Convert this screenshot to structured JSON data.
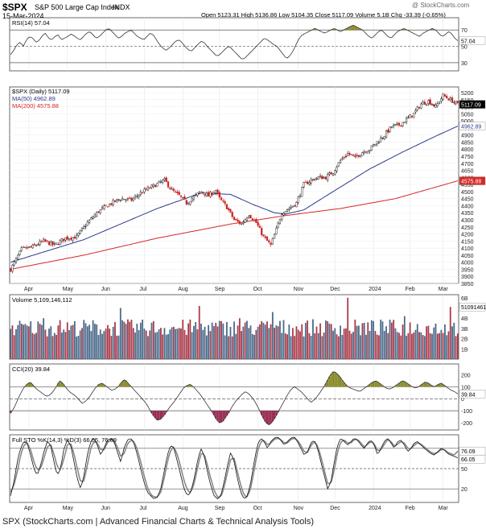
{
  "header": {
    "symbol": "$SPX",
    "name": "S&P 500 Large Cap Index",
    "exchange": "INDX",
    "date": "15-Mar-2024",
    "quote": "Open 5123.31  High 5136.86  Low 5104.35  Close 5117.09  Volume 5.1B  Chg -33.39 (-0.65%)",
    "watermark": "@ StockCharts.com"
  },
  "caption": "SPX (StockCharts.com | Advanced Financial Charts & Technical Analysis Tools)",
  "chart_data": [
    {
      "type": "line",
      "panel": "rsi",
      "legend": "RSI(14) 57.04",
      "current_value": "57.04",
      "ylim": [
        20,
        85
      ],
      "ticks": [
        "70",
        "50",
        "30"
      ],
      "reference_lines": [
        70,
        50,
        30
      ],
      "values": [
        40,
        45,
        52,
        55,
        50,
        58,
        62,
        60,
        55,
        57,
        63,
        66,
        60,
        58,
        62,
        64,
        58,
        60,
        62,
        65,
        63,
        60,
        58,
        62,
        66,
        68,
        64,
        60,
        62,
        66,
        70,
        72,
        68,
        64,
        60,
        62,
        66,
        68,
        70,
        66,
        62,
        60,
        58,
        62,
        66,
        64,
        58,
        52,
        48,
        45,
        48,
        52,
        56,
        58,
        55,
        50,
        46,
        44,
        48,
        52,
        56,
        55,
        50,
        46,
        42,
        38,
        40,
        44,
        48,
        50,
        46,
        42,
        38,
        34,
        36,
        40,
        44,
        48,
        52,
        56,
        60,
        58,
        55,
        52,
        50,
        45,
        40,
        35,
        38,
        44,
        52,
        60,
        64,
        66,
        68,
        70,
        72,
        70,
        68,
        66,
        68,
        70,
        72,
        70,
        68,
        70,
        72,
        74,
        76,
        74,
        72,
        70,
        66,
        62,
        60,
        64,
        68,
        70,
        66,
        62,
        60,
        64,
        68,
        70,
        72,
        70,
        68,
        66,
        64,
        62,
        66,
        68,
        70,
        72,
        70,
        66,
        62,
        64,
        68,
        66,
        60,
        57
      ]
    },
    {
      "type": "candlestick",
      "panel": "price",
      "legend": {
        "title": "$SPX (Daily) 5117.09",
        "series": [
          "MA(50) 4962.89",
          "MA(200) 4575.88"
        ],
        "colors": [
          "#2b3a8c",
          "#d62828"
        ]
      },
      "x_labels": [
        "Apr",
        "May",
        "Jun",
        "Jul",
        "Aug",
        "Sep",
        "Oct",
        "Nov",
        "Dec",
        "2024",
        "Feb",
        "Mar"
      ],
      "ylim": [
        3850,
        5240
      ],
      "y_ticks": [
        "5200",
        "5150",
        "5100",
        "5050",
        "5000",
        "4950",
        "4900",
        "4850",
        "4800",
        "4750",
        "4700",
        "4650",
        "4600",
        "4550",
        "4500",
        "4450",
        "4400",
        "4350",
        "4300",
        "4250",
        "4200",
        "4150",
        "4100",
        "4050",
        "4000",
        "3950",
        "3900",
        "3850"
      ],
      "last_labels": {
        "close": "5117.09",
        "ma50": "4962.89",
        "ma200": "4575.88"
      },
      "close_anchors": [
        [
          0,
          3950
        ],
        [
          6,
          4090
        ],
        [
          12,
          4110
        ],
        [
          18,
          4150
        ],
        [
          24,
          4120
        ],
        [
          30,
          4170
        ],
        [
          36,
          4180
        ],
        [
          42,
          4280
        ],
        [
          48,
          4360
        ],
        [
          54,
          4410
        ],
        [
          60,
          4450
        ],
        [
          66,
          4440
        ],
        [
          72,
          4500
        ],
        [
          78,
          4540
        ],
        [
          84,
          4580
        ],
        [
          88,
          4510
        ],
        [
          92,
          4470
        ],
        [
          96,
          4420
        ],
        [
          100,
          4460
        ],
        [
          104,
          4500
        ],
        [
          108,
          4470
        ],
        [
          112,
          4510
        ],
        [
          114,
          4450
        ],
        [
          118,
          4390
        ],
        [
          122,
          4300
        ],
        [
          126,
          4270
        ],
        [
          130,
          4340
        ],
        [
          134,
          4280
        ],
        [
          138,
          4180
        ],
        [
          142,
          4120
        ],
        [
          145,
          4230
        ],
        [
          148,
          4350
        ],
        [
          152,
          4380
        ],
        [
          156,
          4420
        ],
        [
          160,
          4550
        ],
        [
          164,
          4580
        ],
        [
          168,
          4600
        ],
        [
          172,
          4600
        ],
        [
          176,
          4640
        ],
        [
          180,
          4720
        ],
        [
          184,
          4770
        ],
        [
          188,
          4740
        ],
        [
          192,
          4780
        ],
        [
          196,
          4800
        ],
        [
          200,
          4850
        ],
        [
          204,
          4900
        ],
        [
          208,
          4960
        ],
        [
          212,
          4970
        ],
        [
          216,
          5010
        ],
        [
          220,
          5050
        ],
        [
          224,
          5120
        ],
        [
          228,
          5140
        ],
        [
          232,
          5100
        ],
        [
          236,
          5180
        ],
        [
          240,
          5150
        ],
        [
          244,
          5117
        ]
      ],
      "ma50_anchors": [
        [
          0,
          4000
        ],
        [
          40,
          4160
        ],
        [
          80,
          4380
        ],
        [
          104,
          4490
        ],
        [
          120,
          4480
        ],
        [
          132,
          4410
        ],
        [
          144,
          4350
        ],
        [
          150,
          4340
        ],
        [
          160,
          4370
        ],
        [
          176,
          4500
        ],
        [
          196,
          4660
        ],
        [
          214,
          4780
        ],
        [
          230,
          4880
        ],
        [
          244,
          4963
        ]
      ],
      "ma200_anchors": [
        [
          0,
          3950
        ],
        [
          40,
          4050
        ],
        [
          80,
          4170
        ],
        [
          120,
          4270
        ],
        [
          150,
          4330
        ],
        [
          180,
          4380
        ],
        [
          210,
          4450
        ],
        [
          244,
          4576
        ]
      ]
    },
    {
      "type": "bar",
      "panel": "volume",
      "legend": "Volume 5,109,146,112",
      "last_label": "5109146112",
      "ylim": [
        0,
        6.3
      ],
      "y_ticks": [
        "6B",
        "5B",
        "4B",
        "3B",
        "2B",
        "1B"
      ],
      "spike_indexes": [
        18,
        60,
        103,
        125,
        143,
        184,
        215,
        240
      ],
      "spike_values": [
        4.0,
        5.0,
        5.2,
        4.0,
        4.6,
        6.0,
        4.2,
        5.1
      ]
    },
    {
      "type": "line",
      "panel": "cci",
      "legend": "CCI(20) 39.84",
      "current_value": "39.84",
      "ylim": [
        -260,
        290
      ],
      "y_ticks": [
        "200",
        "100",
        "0",
        "-100",
        "-200"
      ],
      "reference_lines": [
        100,
        0,
        -100
      ],
      "values": [
        -120,
        -80,
        -20,
        40,
        90,
        120,
        140,
        110,
        80,
        60,
        40,
        20,
        30,
        60,
        100,
        150,
        130,
        90,
        60,
        40,
        20,
        -10,
        -40,
        -20,
        10,
        50,
        90,
        120,
        130,
        110,
        90,
        70,
        80,
        100,
        140,
        160,
        130,
        100,
        70,
        40,
        10,
        -20,
        -60,
        -110,
        -150,
        -180,
        -170,
        -140,
        -100,
        -60,
        -30,
        10,
        50,
        90,
        110,
        120,
        100,
        70,
        40,
        0,
        -40,
        -80,
        -120,
        -170,
        -200,
        -190,
        -150,
        -110,
        -60,
        -20,
        10,
        40,
        60,
        40,
        10,
        -30,
        -80,
        -140,
        -190,
        -220,
        -200,
        -160,
        -110,
        -60,
        -10,
        40,
        80,
        100,
        80,
        60,
        30,
        0,
        -30,
        -10,
        20,
        60,
        100,
        150,
        200,
        230,
        210,
        180,
        140,
        110,
        90,
        80,
        70,
        60,
        80,
        100,
        120,
        140,
        150,
        130,
        110,
        90,
        80,
        90,
        110,
        130,
        150,
        140,
        120,
        100,
        90,
        100,
        120,
        140,
        130,
        110,
        100,
        120,
        130,
        110,
        90,
        70,
        60,
        40
      ]
    },
    {
      "type": "line",
      "panel": "stochastic",
      "legend": "Full STO %K(14,3) %D(3) 66.05, 76.09",
      "current_values": [
        "76.09",
        "66.05"
      ],
      "ylim": [
        0,
        100
      ],
      "y_ticks": [
        "80",
        "50",
        "20"
      ],
      "reference_lines": [
        80,
        50,
        20
      ],
      "x_labels": [
        "Apr",
        "May",
        "Jun",
        "Jul",
        "Aug",
        "Sep",
        "Oct",
        "Nov",
        "Dec",
        "2024",
        "Feb",
        "Mar"
      ],
      "k_values": [
        10,
        30,
        60,
        80,
        90,
        88,
        70,
        50,
        40,
        55,
        75,
        90,
        85,
        60,
        40,
        50,
        80,
        92,
        85,
        60,
        35,
        20,
        40,
        70,
        90,
        95,
        85,
        70,
        80,
        92,
        95,
        90,
        75,
        60,
        80,
        92,
        95,
        88,
        70,
        50,
        30,
        15,
        10,
        5,
        8,
        20,
        45,
        70,
        85,
        80,
        60,
        40,
        20,
        10,
        15,
        35,
        60,
        80,
        70,
        45,
        25,
        10,
        5,
        10,
        30,
        55,
        75,
        60,
        35,
        15,
        5,
        10,
        30,
        60,
        85,
        95,
        90,
        80,
        90,
        95,
        97,
        92,
        85,
        90,
        95,
        97,
        90,
        80,
        70,
        75,
        88,
        92,
        80,
        60,
        40,
        20,
        30,
        60,
        85,
        95,
        90,
        85,
        90,
        95,
        92,
        85,
        80,
        88,
        92,
        85,
        70,
        80,
        90,
        95,
        88,
        80,
        90,
        92,
        85,
        75,
        80,
        88,
        90,
        85,
        80,
        76,
        72,
        70,
        75,
        80,
        78,
        72,
        70,
        68,
        66
      ],
      "d_values": [
        15,
        25,
        45,
        70,
        85,
        88,
        78,
        60,
        48,
        50,
        65,
        82,
        86,
        72,
        52,
        48,
        65,
        85,
        88,
        72,
        50,
        30,
        32,
        55,
        80,
        90,
        88,
        78,
        78,
        88,
        93,
        92,
        82,
        68,
        72,
        86,
        92,
        90,
        78,
        60,
        40,
        22,
        12,
        8,
        8,
        15,
        35,
        60,
        78,
        82,
        70,
        52,
        32,
        18,
        14,
        28,
        50,
        72,
        72,
        55,
        35,
        18,
        8,
        8,
        22,
        45,
        65,
        65,
        45,
        25,
        10,
        8,
        22,
        48,
        75,
        90,
        92,
        85,
        88,
        93,
        95,
        93,
        88,
        88,
        93,
        95,
        92,
        84,
        75,
        74,
        84,
        90,
        84,
        68,
        48,
        28,
        28,
        48,
        75,
        90,
        92,
        88,
        88,
        93,
        93,
        88,
        82,
        86,
        90,
        87,
        76,
        78,
        86,
        93,
        90,
        83,
        86,
        90,
        88,
        80,
        79,
        85,
        88,
        86,
        82,
        78,
        74,
        72,
        74,
        78,
        78,
        74,
        72,
        70,
        76
      ]
    }
  ]
}
